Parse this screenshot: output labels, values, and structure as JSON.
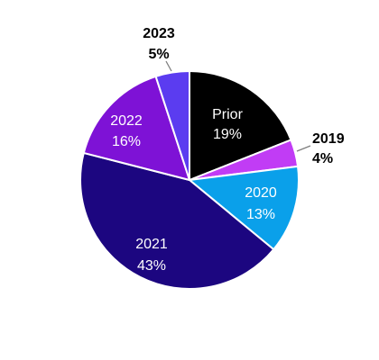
{
  "chart_data": {
    "type": "pie",
    "title": "",
    "slices": [
      {
        "label": "Prior",
        "value": 19,
        "value_label": "19%",
        "color": "#000000",
        "label_style": "inside",
        "text_color": "#ffffff"
      },
      {
        "label": "2019",
        "value": 4,
        "value_label": "4%",
        "color": "#c13cf5",
        "label_style": "outside",
        "text_color": "#000000"
      },
      {
        "label": "2020",
        "value": 13,
        "value_label": "13%",
        "color": "#0aa0ea",
        "label_style": "inside",
        "text_color": "#ffffff"
      },
      {
        "label": "2021",
        "value": 43,
        "value_label": "43%",
        "color": "#1c0680",
        "label_style": "inside",
        "text_color": "#ffffff"
      },
      {
        "label": "2022",
        "value": 16,
        "value_label": "16%",
        "color": "#7e12d6",
        "label_style": "inside",
        "text_color": "#ffffff"
      },
      {
        "label": "2023",
        "value": 5,
        "value_label": "5%",
        "color": "#5b3cf0",
        "label_style": "outside",
        "text_color": "#000000"
      }
    ],
    "start_angle_deg": 0,
    "direction": "clockwise",
    "legend": "none"
  }
}
